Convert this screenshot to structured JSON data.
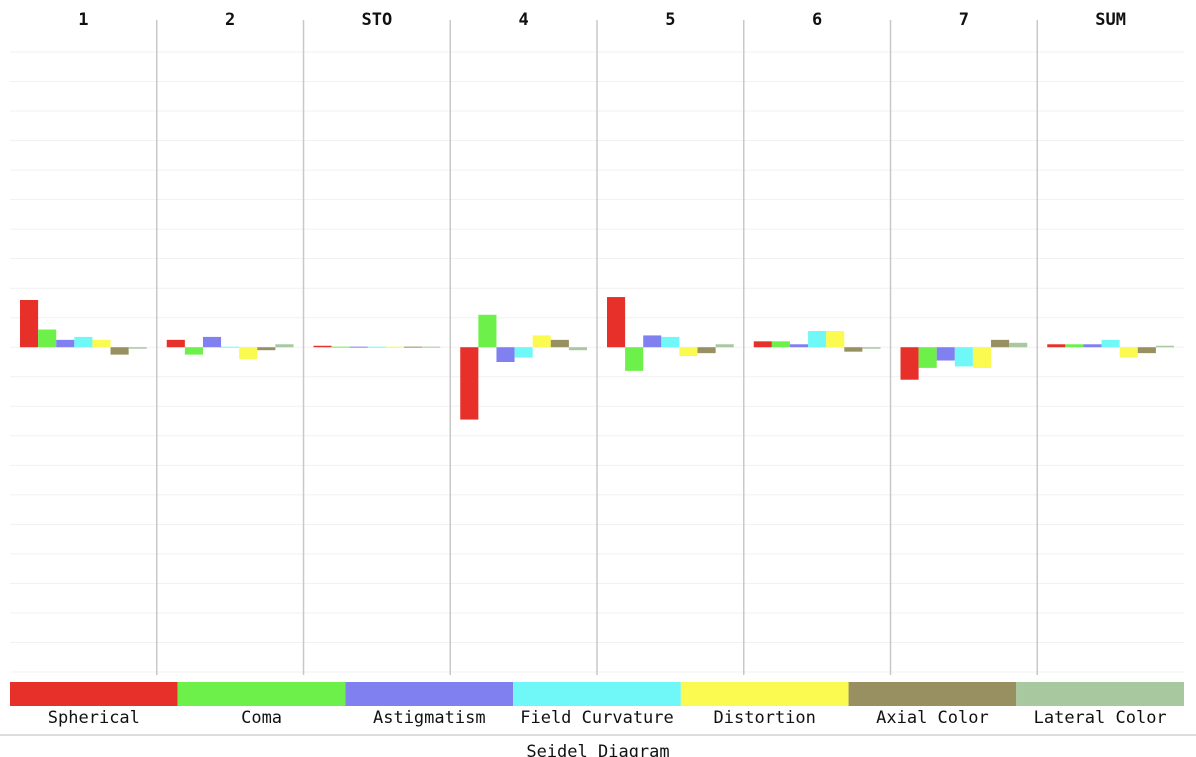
{
  "chart_data": {
    "type": "bar",
    "title": "Seidel Diagram",
    "categories": [
      "1",
      "2",
      "STO",
      "4",
      "5",
      "6",
      "7",
      "SUM"
    ],
    "series": [
      {
        "name": "Spherical",
        "color": "#e8302a",
        "values": [
          1.6,
          0.25,
          0.05,
          -2.45,
          1.7,
          0.2,
          -1.1,
          0.1
        ]
      },
      {
        "name": "Coma",
        "color": "#6ef04a",
        "values": [
          0.6,
          -0.25,
          0.02,
          1.1,
          -0.8,
          0.2,
          -0.7,
          0.1
        ]
      },
      {
        "name": "Astigmatism",
        "color": "#8080f0",
        "values": [
          0.25,
          0.35,
          0.02,
          -0.5,
          0.4,
          0.1,
          -0.45,
          0.1
        ]
      },
      {
        "name": "Field Curvature",
        "color": "#70f8f8",
        "values": [
          0.35,
          0.02,
          0.02,
          -0.35,
          0.35,
          0.55,
          -0.65,
          0.25
        ]
      },
      {
        "name": "Distortion",
        "color": "#fafa50",
        "values": [
          0.25,
          -0.4,
          0.02,
          0.4,
          -0.3,
          0.55,
          -0.7,
          -0.35
        ]
      },
      {
        "name": "Axial Color",
        "color": "#989060",
        "values": [
          -0.25,
          -0.1,
          0.02,
          0.25,
          -0.2,
          -0.15,
          0.25,
          -0.2
        ]
      },
      {
        "name": "Lateral Color",
        "color": "#a8c8a0",
        "values": [
          -0.05,
          0.1,
          0.02,
          -0.1,
          0.1,
          -0.05,
          0.15,
          0.05
        ]
      }
    ],
    "ylim": [
      -11,
      10
    ],
    "grid": true
  }
}
